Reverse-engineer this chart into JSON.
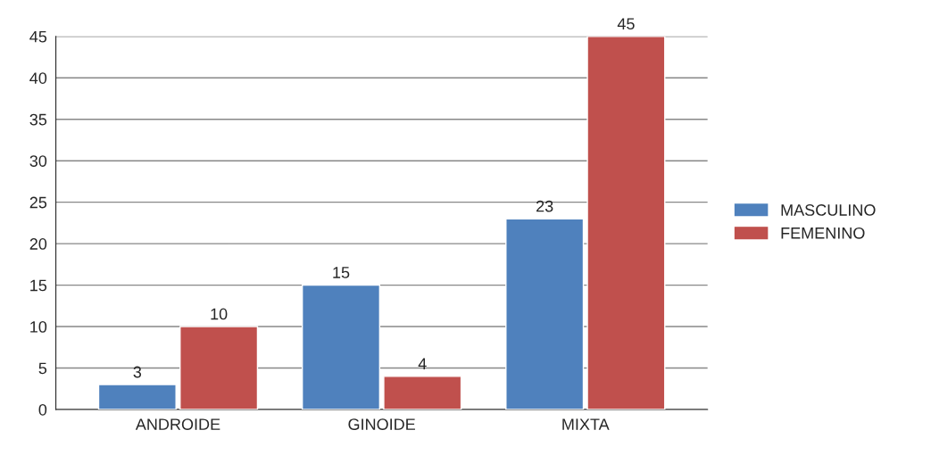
{
  "chart_data": {
    "type": "bar",
    "categories": [
      "ANDROIDE",
      "GINOIDE",
      "MIXTA"
    ],
    "series": [
      {
        "name": "MASCULINO",
        "color": "#4f81bd",
        "values": [
          3,
          15,
          23
        ]
      },
      {
        "name": "FEMENINO",
        "color": "#c0504d",
        "values": [
          10,
          4,
          45
        ]
      }
    ],
    "ylim": [
      0,
      45
    ],
    "yticks": [
      0,
      5,
      10,
      15,
      20,
      25,
      30,
      35,
      40,
      45
    ],
    "grid": "y",
    "legend": "right",
    "data_labels": true
  }
}
